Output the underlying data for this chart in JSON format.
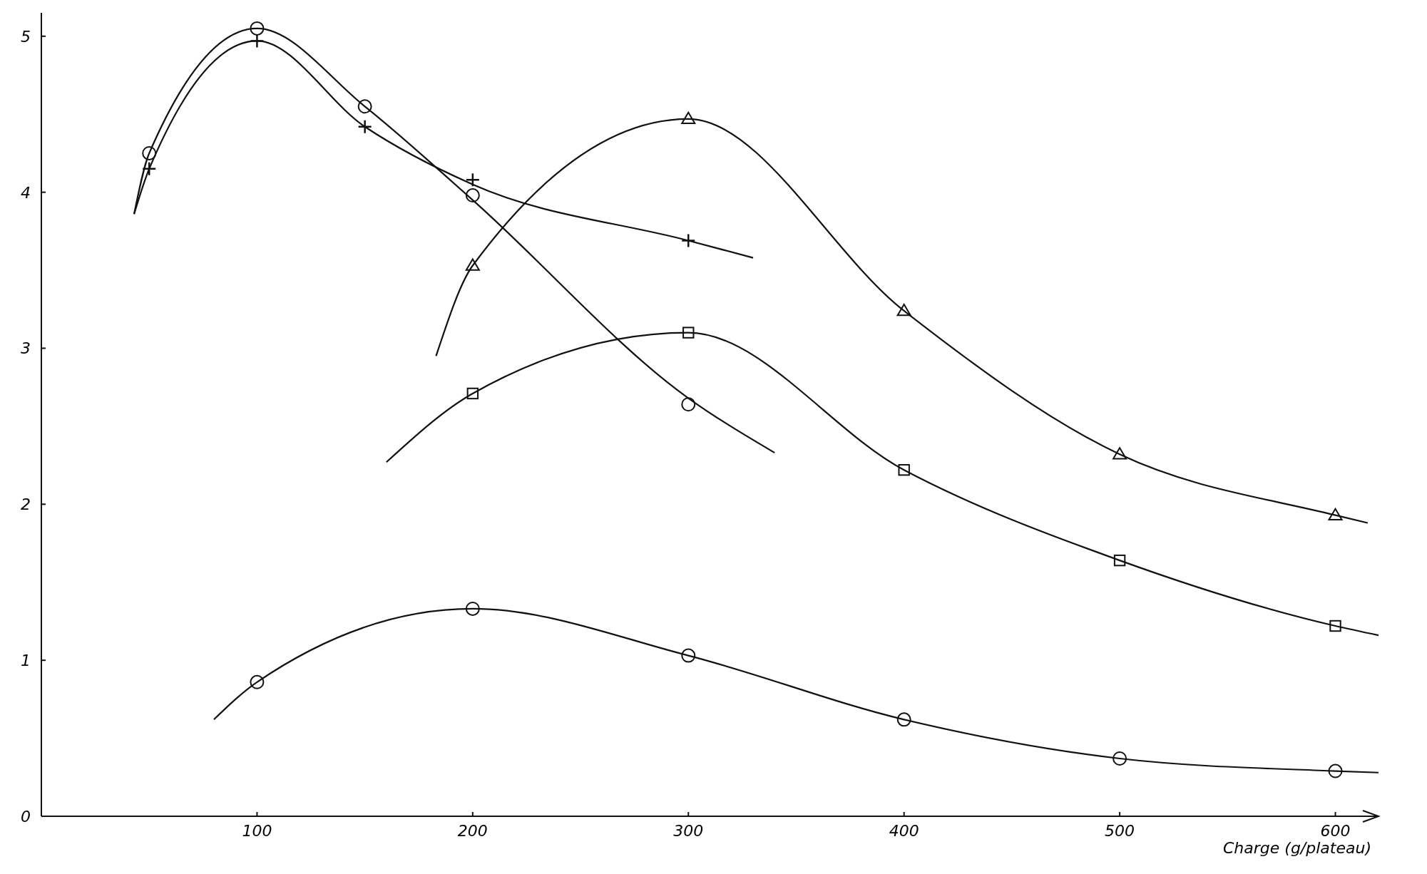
{
  "chart_data": {
    "type": "scatter",
    "xlabel": "Charge (g/plateau)",
    "xlim": [
      0,
      620
    ],
    "ylim": [
      0,
      5.15
    ],
    "xticks": [
      100,
      200,
      300,
      400,
      500,
      600
    ],
    "yticks": [
      0,
      1,
      2,
      3,
      4,
      5
    ],
    "grid": false,
    "series": [
      {
        "marker": "circle",
        "color": "#111111",
        "x": [
          50,
          100,
          150,
          200,
          300
        ],
        "values": [
          4.25,
          5.05,
          4.55,
          3.98,
          2.64
        ]
      },
      {
        "marker": "cross",
        "color": "#111111",
        "x": [
          50,
          100,
          150,
          200,
          300
        ],
        "values": [
          4.15,
          4.97,
          4.42,
          4.08,
          3.69
        ]
      },
      {
        "marker": "triangle",
        "color": "#111111",
        "x": [
          200,
          300,
          400,
          500,
          600
        ],
        "values": [
          3.53,
          4.47,
          3.24,
          2.32,
          1.93
        ]
      },
      {
        "marker": "square",
        "color": "#111111",
        "x": [
          200,
          300,
          400,
          500,
          600
        ],
        "values": [
          2.71,
          3.1,
          2.22,
          1.64,
          1.22
        ]
      },
      {
        "marker": "circle",
        "color": "#111111",
        "x": [
          100,
          200,
          300,
          400,
          500,
          600
        ],
        "values": [
          0.86,
          1.33,
          1.03,
          0.62,
          0.37,
          0.29
        ]
      },
      {
        "type": "line",
        "marker": "none",
        "color": "#111111",
        "x": [
          43,
          50,
          100,
          150,
          200,
          300,
          340
        ],
        "values": [
          3.86,
          4.25,
          5.05,
          4.55,
          3.95,
          2.68,
          2.33
        ]
      },
      {
        "type": "line",
        "marker": "none",
        "color": "#111111",
        "x": [
          43,
          50,
          100,
          150,
          200,
          300,
          330
        ],
        "values": [
          3.86,
          4.15,
          4.97,
          4.42,
          4.05,
          3.69,
          3.58
        ]
      },
      {
        "type": "line",
        "marker": "none",
        "color": "#111111",
        "x": [
          183,
          200,
          300,
          400,
          500,
          600,
          615
        ],
        "values": [
          2.95,
          3.53,
          4.47,
          3.24,
          2.32,
          1.93,
          1.88
        ]
      },
      {
        "type": "line",
        "marker": "none",
        "color": "#111111",
        "x": [
          160,
          200,
          300,
          400,
          500,
          600,
          620
        ],
        "values": [
          2.27,
          2.71,
          3.1,
          2.22,
          1.64,
          1.22,
          1.16
        ]
      },
      {
        "type": "line",
        "marker": "none",
        "color": "#111111",
        "x": [
          80,
          100,
          200,
          300,
          400,
          500,
          600,
          620
        ],
        "values": [
          0.62,
          0.86,
          1.33,
          1.03,
          0.62,
          0.37,
          0.29,
          0.28
        ]
      }
    ]
  }
}
